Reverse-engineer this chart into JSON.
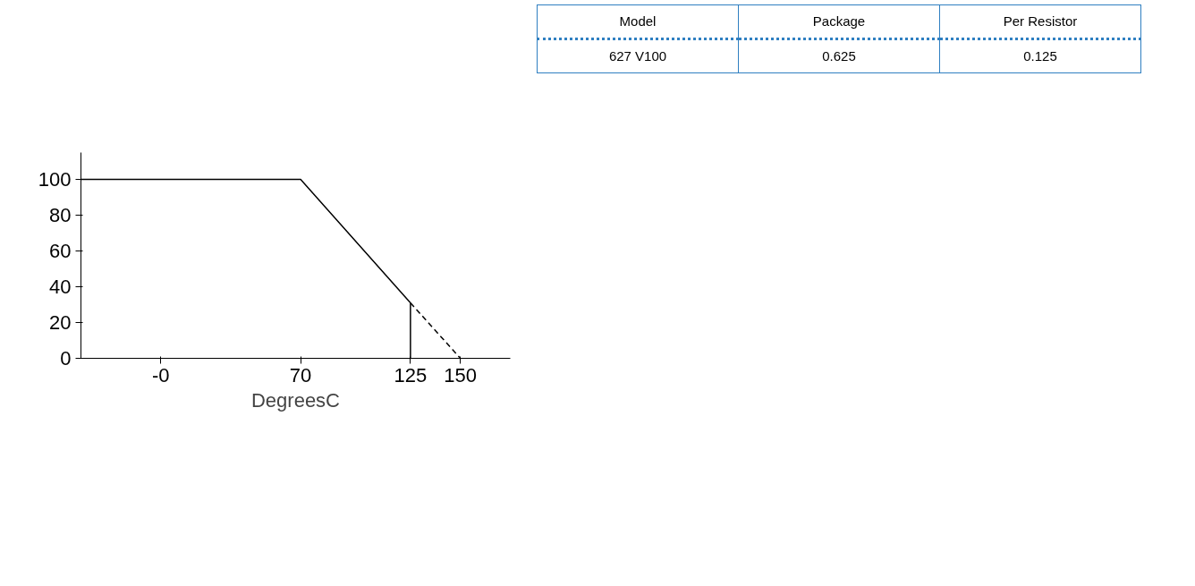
{
  "chart_data": {
    "type": "line",
    "xlabel": "DegreesC",
    "series": [
      {
        "x": [
          -40,
          70,
          125
        ],
        "values": [
          100,
          100,
          31
        ],
        "color": "#000000",
        "line_style": "solid"
      },
      {
        "x": [
          125,
          150
        ],
        "values": [
          31,
          0
        ],
        "color": "#000000",
        "line_style": "dashed"
      },
      {
        "x": [
          125,
          125
        ],
        "values": [
          0,
          31
        ],
        "color": "#000000",
        "line_style": "solid"
      }
    ],
    "xlim": [
      -40,
      175
    ],
    "xticks": [
      {
        "value": 0,
        "label": "-0"
      },
      70,
      125,
      150
    ],
    "ylim": [
      0,
      115
    ],
    "yticks": [
      0,
      20,
      40,
      60,
      80,
      100
    ],
    "grid": false,
    "marker": "none",
    "annotations": [
      "Model",
      "Package",
      "Per Resistor",
      "627 V100",
      "0.625",
      "0.125"
    ]
  }
}
